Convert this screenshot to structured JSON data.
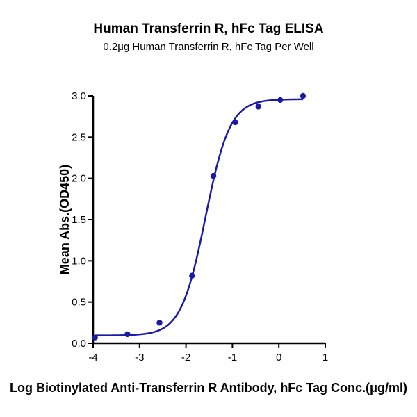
{
  "chart_data": {
    "type": "scatter",
    "title": "Human Transferrin R, hFc Tag ELISA",
    "subtitle": "0.2μg Human Transferrin R, hFc Tag Per Well",
    "xlabel": "Log Biotinylated Anti-Transferrin R Antibody, hFc Tag Conc.(μg/ml)",
    "ylabel": "Mean Abs.(OD450)",
    "xlim": [
      -4,
      1
    ],
    "ylim": [
      0,
      3.0
    ],
    "x_ticks": [
      "-4",
      "-3",
      "-2",
      "-1",
      "0",
      "1"
    ],
    "y_ticks": [
      "0.0",
      "0.5",
      "1.0",
      "1.5",
      "2.0",
      "2.5",
      "3.0"
    ],
    "grid": false,
    "series_color": "#1a1aa6",
    "points": [
      {
        "x": -3.96,
        "y": 0.07
      },
      {
        "x": -3.26,
        "y": 0.11
      },
      {
        "x": -2.57,
        "y": 0.25
      },
      {
        "x": -1.87,
        "y": 0.82
      },
      {
        "x": -1.41,
        "y": 2.03
      },
      {
        "x": -0.94,
        "y": 2.68
      },
      {
        "x": -0.44,
        "y": 2.87
      },
      {
        "x": 0.03,
        "y": 2.95
      },
      {
        "x": 0.52,
        "y": 3.0
      }
    ],
    "fit": {
      "bottom": 0.095,
      "top": 2.96,
      "logEC50": -1.58,
      "hill": 1.65
    }
  }
}
